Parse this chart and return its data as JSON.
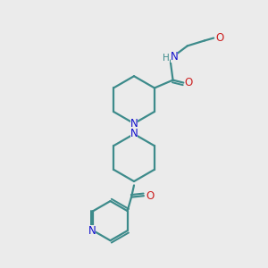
{
  "bg_color": "#ebebeb",
  "bond_color": "#3d8b8b",
  "N_color": "#1010cc",
  "O_color": "#cc2020",
  "linewidth": 1.6,
  "figsize": [
    3.0,
    3.0
  ],
  "dpi": 100,
  "xlim": [
    0,
    10
  ],
  "ylim": [
    0,
    10
  ]
}
